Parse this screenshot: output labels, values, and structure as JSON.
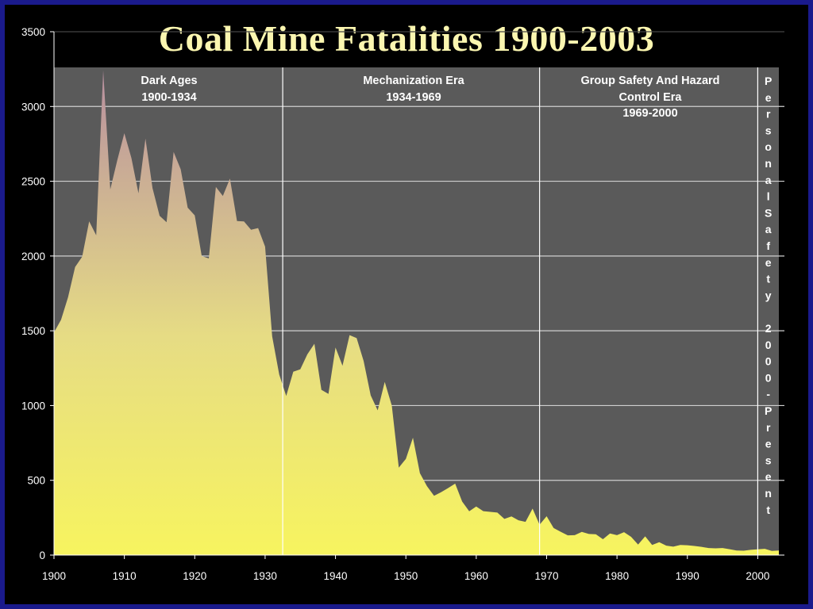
{
  "chart_data": {
    "type": "area",
    "title": "Coal Mine Fatalities 1900-2003",
    "xlabel": "",
    "ylabel": "",
    "xlim": [
      1900,
      2003
    ],
    "ylim": [
      0,
      3500
    ],
    "xticks": [
      1900,
      1910,
      1920,
      1930,
      1940,
      1950,
      1960,
      1970,
      1980,
      1990,
      2000
    ],
    "yticks": [
      0,
      500,
      1000,
      1500,
      2000,
      2500,
      3000,
      3500
    ],
    "grid": true,
    "legend": "none",
    "colors": {
      "top": "#b88fa0",
      "bottom": "#f7f45f",
      "panel": "#5a5a5a"
    },
    "eras": [
      {
        "label": "Dark Ages",
        "years": "1900-1934",
        "start": 1900,
        "end": 1932.5
      },
      {
        "label": "Mechanization Era",
        "years": "1934-1969",
        "start": 1932.5,
        "end": 1969
      },
      {
        "label": "Group Safety And Hazard Control Era",
        "years": "1969-2000",
        "start": 1969,
        "end": 2000
      },
      {
        "label": "Personal Safety",
        "years": "2000-Present",
        "start": 2000,
        "end": 2003
      }
    ],
    "x": [
      1900,
      1901,
      1902,
      1903,
      1904,
      1905,
      1906,
      1907,
      1908,
      1909,
      1910,
      1911,
      1912,
      1913,
      1914,
      1915,
      1916,
      1917,
      1918,
      1919,
      1920,
      1921,
      1922,
      1923,
      1924,
      1925,
      1926,
      1927,
      1928,
      1929,
      1930,
      1931,
      1932,
      1933,
      1934,
      1935,
      1936,
      1937,
      1938,
      1939,
      1940,
      1941,
      1942,
      1943,
      1944,
      1945,
      1946,
      1947,
      1948,
      1949,
      1950,
      1951,
      1952,
      1953,
      1954,
      1955,
      1956,
      1957,
      1958,
      1959,
      1960,
      1961,
      1962,
      1963,
      1964,
      1965,
      1966,
      1967,
      1968,
      1969,
      1970,
      1971,
      1972,
      1973,
      1974,
      1975,
      1976,
      1977,
      1978,
      1979,
      1980,
      1981,
      1982,
      1983,
      1984,
      1985,
      1986,
      1987,
      1988,
      1989,
      1990,
      1991,
      1992,
      1993,
      1994,
      1995,
      1996,
      1997,
      1998,
      1999,
      2000,
      2001,
      2002,
      2003
    ],
    "values": [
      1489,
      1574,
      1724,
      1926,
      1995,
      2232,
      2138,
      3242,
      2445,
      2642,
      2821,
      2656,
      2419,
      2785,
      2454,
      2269,
      2226,
      2696,
      2580,
      2323,
      2272,
      1999,
      1984,
      2462,
      2402,
      2518,
      2234,
      2231,
      2176,
      2187,
      2063,
      1463,
      1207,
      1064,
      1226,
      1242,
      1342,
      1413,
      1105,
      1078,
      1388,
      1266,
      1471,
      1451,
      1298,
      1068,
      968,
      1158,
      999,
      585,
      643,
      785,
      548,
      461,
      396,
      420,
      448,
      478,
      358,
      293,
      325,
      294,
      289,
      284,
      242,
      259,
      233,
      222,
      311,
      203,
      260,
      181,
      156,
      132,
      133,
      155,
      141,
      139,
      106,
      144,
      133,
      153,
      122,
      70,
      125,
      68,
      86,
      63,
      56,
      68,
      66,
      61,
      55,
      47,
      45,
      47,
      39,
      30,
      29,
      35,
      38,
      42,
      28,
      30
    ],
    "text": {
      "dark_ages": "Dark Ages",
      "dark_ages_years": "1900-1934",
      "mech": "Mechanization Era",
      "mech_years": "1934-1969",
      "group_1": "Group Safety And Hazard",
      "group_2": "Control Era",
      "group_years": "1969-2000",
      "personal": "PersonalSafety 2000-Present"
    }
  }
}
